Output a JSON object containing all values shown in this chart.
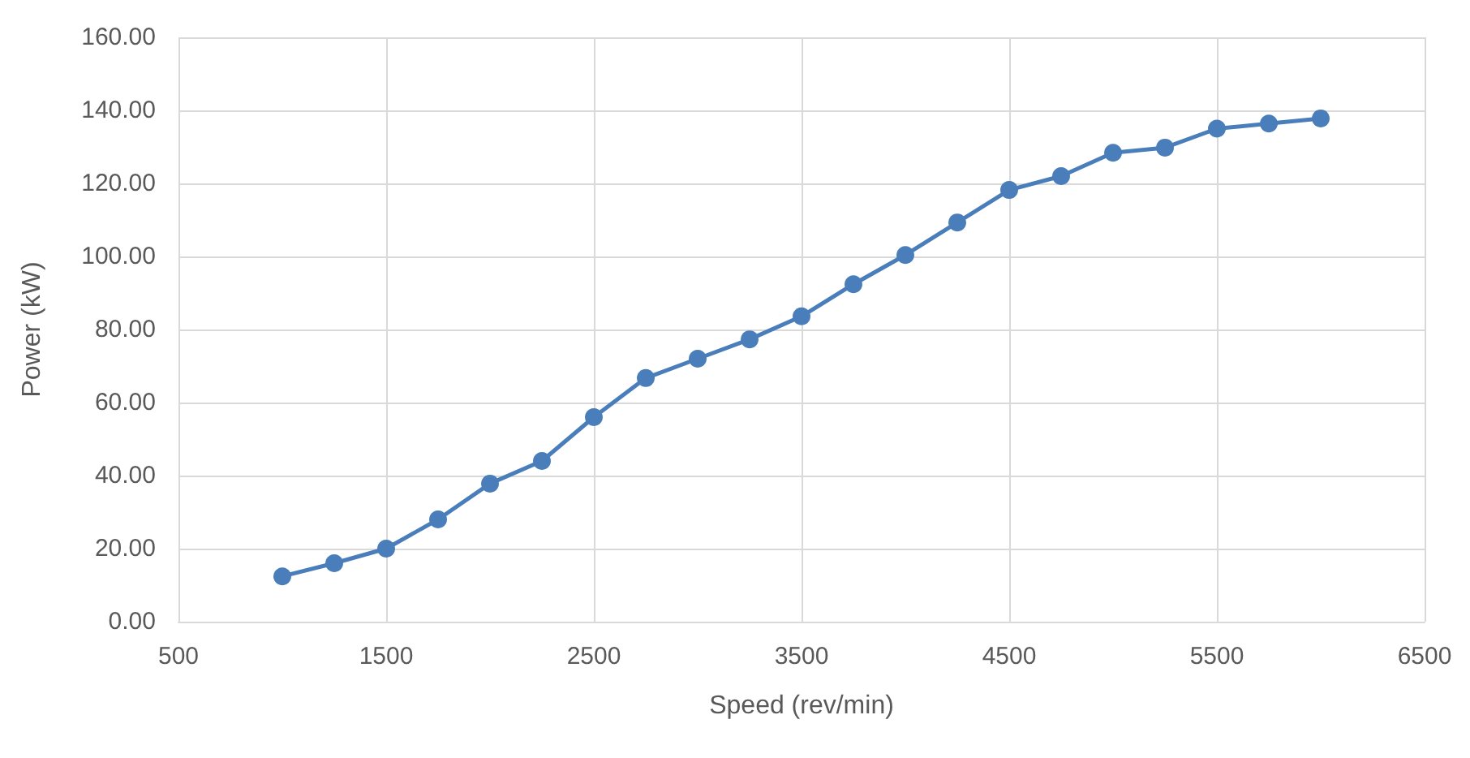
{
  "chart_data": {
    "type": "line",
    "xlabel": "Speed (rev/min)",
    "ylabel": "Power (kW)",
    "x": [
      1000,
      1250,
      1500,
      1750,
      2000,
      2250,
      2500,
      2750,
      3000,
      3250,
      3500,
      3750,
      4000,
      4250,
      4500,
      4750,
      5000,
      5250,
      5500,
      5750,
      6000
    ],
    "series": [
      {
        "color": "#4a7ebb",
        "values": [
          12.4,
          16,
          20,
          28,
          37.8,
          44,
          56,
          66.7,
          72,
          77.3,
          83.6,
          92.4,
          100.4,
          109.3,
          118.2,
          122,
          128.4,
          129.8,
          135,
          136.4,
          137.8
        ]
      }
    ],
    "xlim": [
      500,
      6500
    ],
    "xticks": [
      500,
      1500,
      2500,
      3500,
      4500,
      5500,
      6500
    ],
    "ylim": [
      0,
      160
    ],
    "yticks": [
      {
        "value": 0,
        "label": "0.00"
      },
      {
        "value": 20,
        "label": "20.00"
      },
      {
        "value": 40,
        "label": "40.00"
      },
      {
        "value": 60,
        "label": "60.00"
      },
      {
        "value": 80,
        "label": "80.00"
      },
      {
        "value": 100,
        "label": "100.00"
      },
      {
        "value": 120,
        "label": "120.00"
      },
      {
        "value": 140,
        "label": "140.00"
      },
      {
        "value": 160,
        "label": "160.00"
      }
    ],
    "grid": true,
    "marker": "circle",
    "line_style": "solid"
  }
}
